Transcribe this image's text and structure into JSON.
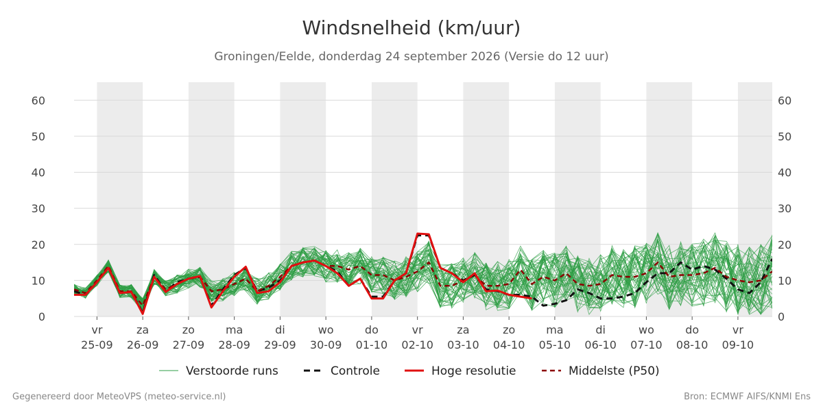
{
  "header": {
    "title": "Windsnelheid (km/uur)",
    "subtitle": "Groningen/Eelde, donderdag 24 september 2026 (Versie do 12 uur)"
  },
  "footer": {
    "left": "Gegenereerd door MeteoVPS (meteo-service.nl)",
    "right": "Bron: ECMWF AIFS/KNMI Ens"
  },
  "colors": {
    "ensemble": "#2e9e44",
    "control": "#111111",
    "high_res": "#e01010",
    "median": "#8b0000",
    "day_shade": "#ececec",
    "grid": "#d9d9d9"
  },
  "chart_data": {
    "type": "line",
    "ylim": [
      0,
      65
    ],
    "yticks": [
      0,
      10,
      20,
      30,
      40,
      50,
      60
    ],
    "y_axis_both_sides": true,
    "x_unit": "hours since 25-09 00:00",
    "xlim": [
      -12,
      354
    ],
    "grid": "horizontal",
    "legend_position": "bottom",
    "x_ticks": [
      {
        "day": "vr",
        "date": "25-09"
      },
      {
        "day": "za",
        "date": "26-09"
      },
      {
        "day": "zo",
        "date": "27-09"
      },
      {
        "day": "ma",
        "date": "28-09"
      },
      {
        "day": "di",
        "date": "29-09"
      },
      {
        "day": "wo",
        "date": "30-09"
      },
      {
        "day": "do",
        "date": "01-10"
      },
      {
        "day": "vr",
        "date": "02-10"
      },
      {
        "day": "za",
        "date": "03-10"
      },
      {
        "day": "zo",
        "date": "04-10"
      },
      {
        "day": "ma",
        "date": "05-10"
      },
      {
        "day": "di",
        "date": "06-10"
      },
      {
        "day": "wo",
        "date": "07-10"
      },
      {
        "day": "do",
        "date": "08-10"
      },
      {
        "day": "vr",
        "date": "09-10"
      }
    ],
    "shaded_days": [
      "25-09",
      "27-09",
      "29-09",
      "01-10",
      "03-10",
      "05-10",
      "07-10",
      "09-10"
    ],
    "legend": [
      {
        "key": "ensemble",
        "label": "Verstoorde runs"
      },
      {
        "key": "control",
        "label": "Controle"
      },
      {
        "key": "high_res",
        "label": "Hoge resolutie"
      },
      {
        "key": "median",
        "label": "Middelste (P50)"
      }
    ],
    "series": [
      {
        "name": "Hoge resolutie",
        "x": [
          -12,
          -6,
          0,
          6,
          12,
          18,
          24,
          30,
          36,
          42,
          48,
          54,
          60,
          66,
          72,
          78,
          84,
          90,
          96,
          102,
          108,
          114,
          120,
          126,
          132,
          138,
          144,
          150,
          156,
          162,
          168,
          174,
          180,
          186,
          192,
          198,
          204,
          210,
          216,
          222,
          228
        ],
        "y": [
          6,
          6,
          9.5,
          13.5,
          6.5,
          6.8,
          0.7,
          11,
          6.8,
          9,
          10.5,
          11.2,
          2.5,
          7,
          11,
          13.8,
          6.5,
          7,
          9.5,
          14,
          15,
          15.5,
          14,
          12,
          8.5,
          10.5,
          5,
          5,
          10,
          12,
          23,
          22.8,
          13.5,
          12,
          9.5,
          12,
          7,
          7.2,
          6,
          5.5,
          5
        ]
      },
      {
        "name": "Controle",
        "x": [
          -12,
          -6,
          0,
          6,
          12,
          18,
          24,
          30,
          36,
          42,
          48,
          54,
          60,
          66,
          72,
          78,
          84,
          90,
          96,
          102,
          108,
          114,
          120,
          126,
          132,
          138,
          144,
          150,
          156,
          162,
          168,
          174,
          180,
          186,
          192,
          198,
          204,
          210,
          216,
          222,
          228,
          234,
          240,
          246,
          252,
          258,
          264,
          270,
          276,
          282,
          288,
          294,
          300,
          306,
          312,
          318,
          324,
          330,
          336,
          342,
          348,
          354
        ],
        "y": [
          7,
          6,
          9.5,
          13.5,
          6.5,
          6.8,
          1,
          11.5,
          7,
          9.5,
          10.5,
          11,
          3,
          7.5,
          11.5,
          13.5,
          7,
          8,
          10,
          14,
          15,
          15.5,
          14,
          12.5,
          8.5,
          10.5,
          5.5,
          5.5,
          10,
          12,
          22.5,
          22.5,
          13.5,
          12,
          10,
          11.5,
          7.5,
          7,
          6,
          6,
          5.5,
          3,
          3.5,
          4.5,
          7.5,
          6.5,
          5,
          5,
          5.5,
          6.5,
          9.5,
          12,
          12,
          15,
          13,
          14,
          13,
          10.5,
          7.5,
          6.5,
          9.5,
          16
        ]
      },
      {
        "name": "Middelste (P50)",
        "x": [
          -12,
          -6,
          0,
          6,
          12,
          18,
          24,
          30,
          36,
          42,
          48,
          54,
          60,
          66,
          72,
          78,
          84,
          90,
          96,
          102,
          108,
          114,
          120,
          126,
          132,
          138,
          144,
          150,
          156,
          162,
          168,
          174,
          180,
          186,
          192,
          198,
          204,
          210,
          216,
          222,
          228,
          234,
          240,
          246,
          252,
          258,
          264,
          270,
          276,
          282,
          288,
          294,
          300,
          306,
          312,
          318,
          324,
          330,
          336,
          342,
          348,
          354
        ],
        "y": [
          7.5,
          6.5,
          10,
          14,
          7,
          7,
          3,
          11,
          7.5,
          9,
          10.5,
          11,
          7,
          7.5,
          9,
          10.5,
          7,
          8.5,
          11,
          14,
          15,
          15.5,
          14,
          14,
          13,
          14,
          11.5,
          11.5,
          10,
          11,
          12.5,
          15,
          8.5,
          8.5,
          10,
          11.5,
          8.5,
          8.5,
          9,
          13,
          9,
          11,
          10,
          12,
          9,
          8.5,
          9,
          11.5,
          11,
          11,
          12,
          15,
          11,
          11.5,
          11.5,
          12,
          13.5,
          11,
          10,
          9.5,
          10,
          12.5
        ]
      }
    ],
    "ensemble_members": 50,
    "ensemble_range_note": ""
  }
}
